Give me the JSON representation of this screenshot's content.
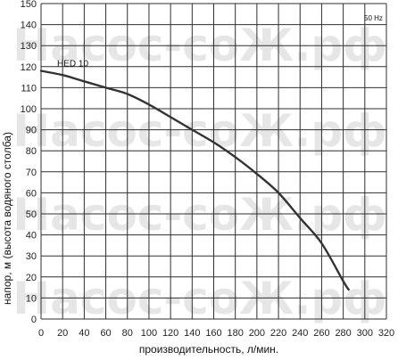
{
  "watermark": "Насос-соЖ.рф",
  "chart_data": {
    "type": "line",
    "xlabel": "производительность, л/мин.",
    "ylabel": "напор, м (высота водяного столба)",
    "xlim": [
      0,
      320
    ],
    "ylim": [
      0,
      150
    ],
    "x_ticks": [
      "0",
      "20",
      "40",
      "60",
      "80",
      "100",
      "120",
      "140",
      "160",
      "180",
      "200",
      "220",
      "240",
      "260",
      "280",
      "300",
      "320"
    ],
    "y_ticks": [
      "0",
      "10",
      "20",
      "30",
      "40",
      "50",
      "60",
      "70",
      "80",
      "90",
      "100",
      "110",
      "120",
      "130",
      "140",
      "150"
    ],
    "grid": true,
    "frequency_label": "50 Hz",
    "series": [
      {
        "name": "HED 10",
        "color": "#333333",
        "x": [
          0,
          20,
          40,
          60,
          80,
          100,
          120,
          140,
          160,
          180,
          200,
          220,
          240,
          260,
          280,
          285
        ],
        "y": [
          118,
          116,
          113,
          110,
          107,
          102,
          96,
          90,
          84,
          77,
          69,
          60,
          48,
          36,
          18,
          14
        ]
      }
    ]
  }
}
